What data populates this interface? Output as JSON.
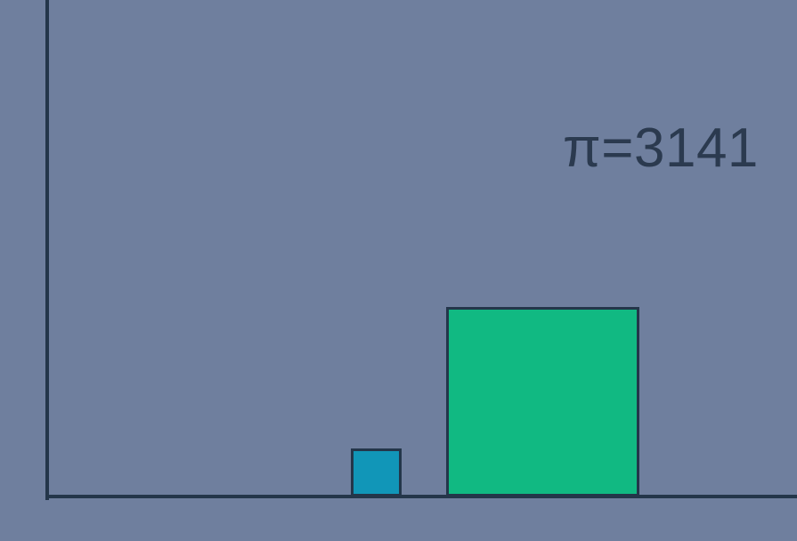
{
  "colors": {
    "background": "#6f7f9e",
    "line": "#24364a",
    "small_block_fill": "#1196b8",
    "large_block_fill": "#11b982",
    "block_border": "#24364a",
    "counter_text": "#2b3a4f"
  },
  "counter": {
    "text": "π=3141"
  },
  "blocks": [
    {
      "id": "small",
      "color": "#1196b8"
    },
    {
      "id": "large",
      "color": "#11b982"
    }
  ]
}
